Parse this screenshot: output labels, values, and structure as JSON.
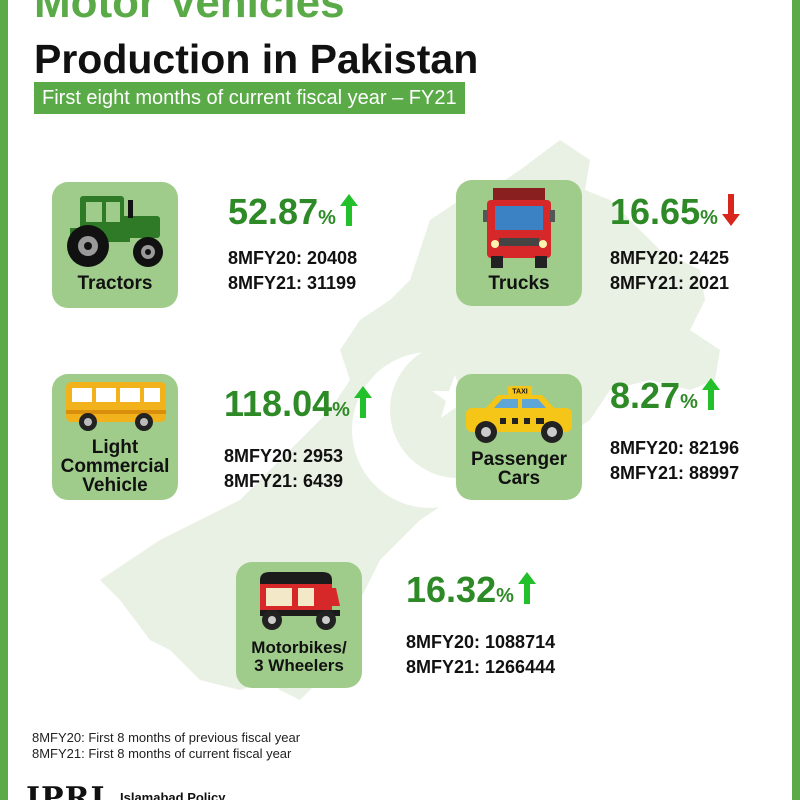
{
  "header": {
    "title_line1": "Motor Vehicles’",
    "title_line2": "Production in Pakistan",
    "subtitle": "First eight months of current fiscal year – FY21"
  },
  "colors": {
    "brand_green": "#5aaa48",
    "card_green": "#9fcc8a",
    "value_green": "#2d8a26",
    "up_arrow": "#22c02a",
    "down_arrow": "#d9261c"
  },
  "categories": [
    {
      "label": "Tractors",
      "icon": "tractor-icon",
      "change": "52.87",
      "unit": "%",
      "direction": "up",
      "prev": "8MFY20: 20408",
      "curr": "8MFY21: 31199"
    },
    {
      "label": "Trucks",
      "icon": "truck-icon",
      "change": "16.65",
      "unit": "%",
      "direction": "down",
      "prev": "8MFY20: 2425",
      "curr": "8MFY21: 2021"
    },
    {
      "label_lines": [
        "Light",
        "Commercial",
        "Vehicle"
      ],
      "icon": "bus-icon",
      "change": "118.04",
      "unit": "%",
      "direction": "up",
      "prev": "8MFY20: 2953",
      "curr": "8MFY21: 6439"
    },
    {
      "label_lines": [
        "Passenger",
        "Cars"
      ],
      "icon": "taxi-icon",
      "taxi_sign": "TAXI",
      "change": "8.27",
      "unit": "%",
      "direction": "up",
      "prev": "8MFY20: 82196",
      "curr": "8MFY21: 88997"
    },
    {
      "label_lines": [
        "Motorbikes/",
        "3 Wheelers"
      ],
      "icon": "rickshaw-icon",
      "change": "16.32",
      "unit": "%",
      "direction": "up",
      "prev": "8MFY20: 1088714",
      "curr": "8MFY21: 1266444"
    }
  ],
  "footnotes": [
    "8MFY20: First 8 months of previous fiscal year",
    "8MFY21: First 8 months of current fiscal year"
  ],
  "logo": {
    "abbr": "IPRI",
    "name": "Islamabad Policy"
  }
}
